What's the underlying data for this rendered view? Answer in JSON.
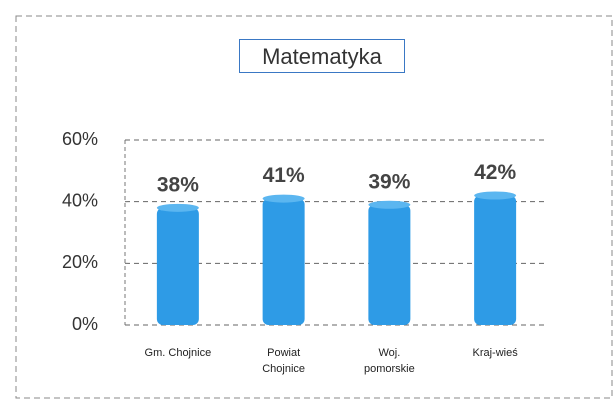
{
  "chart_data": {
    "type": "bar",
    "title": "Matematyka",
    "categories": [
      "Gm. Chojnice",
      "Powiat Chojnice",
      "Woj. pomorskie",
      "Kraj-wieś"
    ],
    "values": [
      38,
      41,
      39,
      42
    ],
    "value_labels": [
      "38%",
      "41%",
      "39%",
      "42%"
    ],
    "color": "#2e9be6",
    "ylim": [
      0,
      60
    ],
    "yticks": [
      {
        "value": 0,
        "label": "0%"
      },
      {
        "value": 20,
        "label": "20%"
      },
      {
        "value": 40,
        "label": "40%"
      },
      {
        "value": 60,
        "label": "60%"
      }
    ],
    "grid": true
  }
}
